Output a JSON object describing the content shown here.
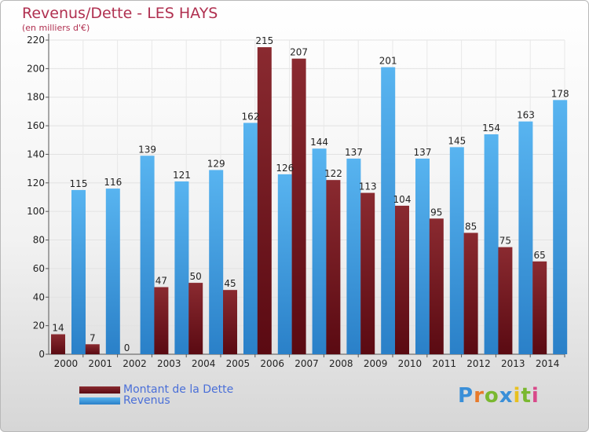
{
  "chart_data": {
    "type": "bar",
    "title": "Revenus/Dette - LES HAYS",
    "subtitle": "(en milliers d'€)",
    "categories": [
      "2000",
      "2001",
      "2002",
      "2003",
      "2004",
      "2005",
      "2006",
      "2007",
      "2008",
      "2009",
      "2010",
      "2011",
      "2012",
      "2013",
      "2014"
    ],
    "series": [
      {
        "name": "Montant de la Dette",
        "color": "#7a1a22",
        "values": [
          14,
          7,
          0,
          47,
          50,
          45,
          215,
          207,
          122,
          113,
          104,
          95,
          85,
          75,
          65
        ]
      },
      {
        "name": "Revenus",
        "color": "#4aa6e8",
        "values": [
          115,
          116,
          139,
          121,
          129,
          162,
          126,
          144,
          137,
          201,
          137,
          145,
          154,
          163,
          178
        ]
      }
    ],
    "ylim": [
      0,
      220
    ],
    "yticks": [
      0,
      20,
      40,
      60,
      80,
      100,
      120,
      140,
      160,
      180,
      200,
      220
    ],
    "grid": true,
    "legend_position": "bottom-left"
  },
  "logo": {
    "text": "Proxiti",
    "colors": [
      "#3a8fd8",
      "#e87a2a",
      "#7ab830",
      "#3a8fd8",
      "#e8c020",
      "#7ab830",
      "#d84a8a"
    ]
  }
}
